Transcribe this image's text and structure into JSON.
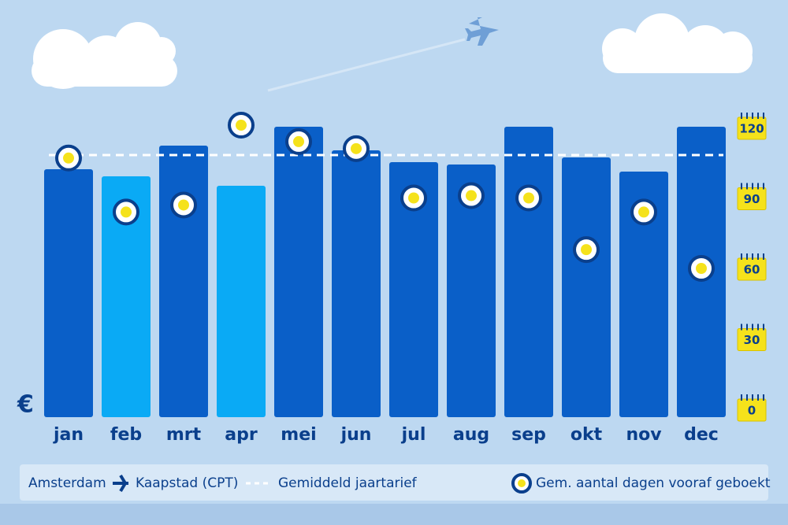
{
  "chart_data": {
    "type": "bar",
    "categories": [
      "jan",
      "feb",
      "mrt",
      "apr",
      "mei",
      "jun",
      "jul",
      "aug",
      "sep",
      "okt",
      "nov",
      "dec"
    ],
    "values": [
      105,
      102,
      115,
      98,
      123,
      113,
      108,
      107,
      123,
      110,
      104,
      123
    ],
    "colors": [
      "#0a5fc8",
      "#0aaaf5",
      "#0a5fc8",
      "#0aaaf5",
      "#0a5fc8",
      "#0a5fc8",
      "#0a5fc8",
      "#0a5fc8",
      "#0a5fc8",
      "#0a5fc8",
      "#0a5fc8",
      "#0a5fc8"
    ],
    "ylim": [
      0,
      124
    ],
    "currency": "€",
    "average": {
      "name": "Gemiddeld jaartarief",
      "value": 111
    },
    "route": {
      "from": "Amsterdam",
      "to": "Kaapstad (CPT)"
    },
    "series": [
      {
        "name": "Gem. aantal dagen vooraf geboekt",
        "axis": "y2",
        "color": "#f5e21b",
        "values": [
          107,
          84,
          87,
          121,
          114,
          111,
          90,
          91,
          90,
          68,
          84,
          60
        ]
      }
    ],
    "y2lim": [
      0,
      120
    ],
    "y2ticks": [
      0,
      30,
      60,
      90,
      120
    ]
  }
}
